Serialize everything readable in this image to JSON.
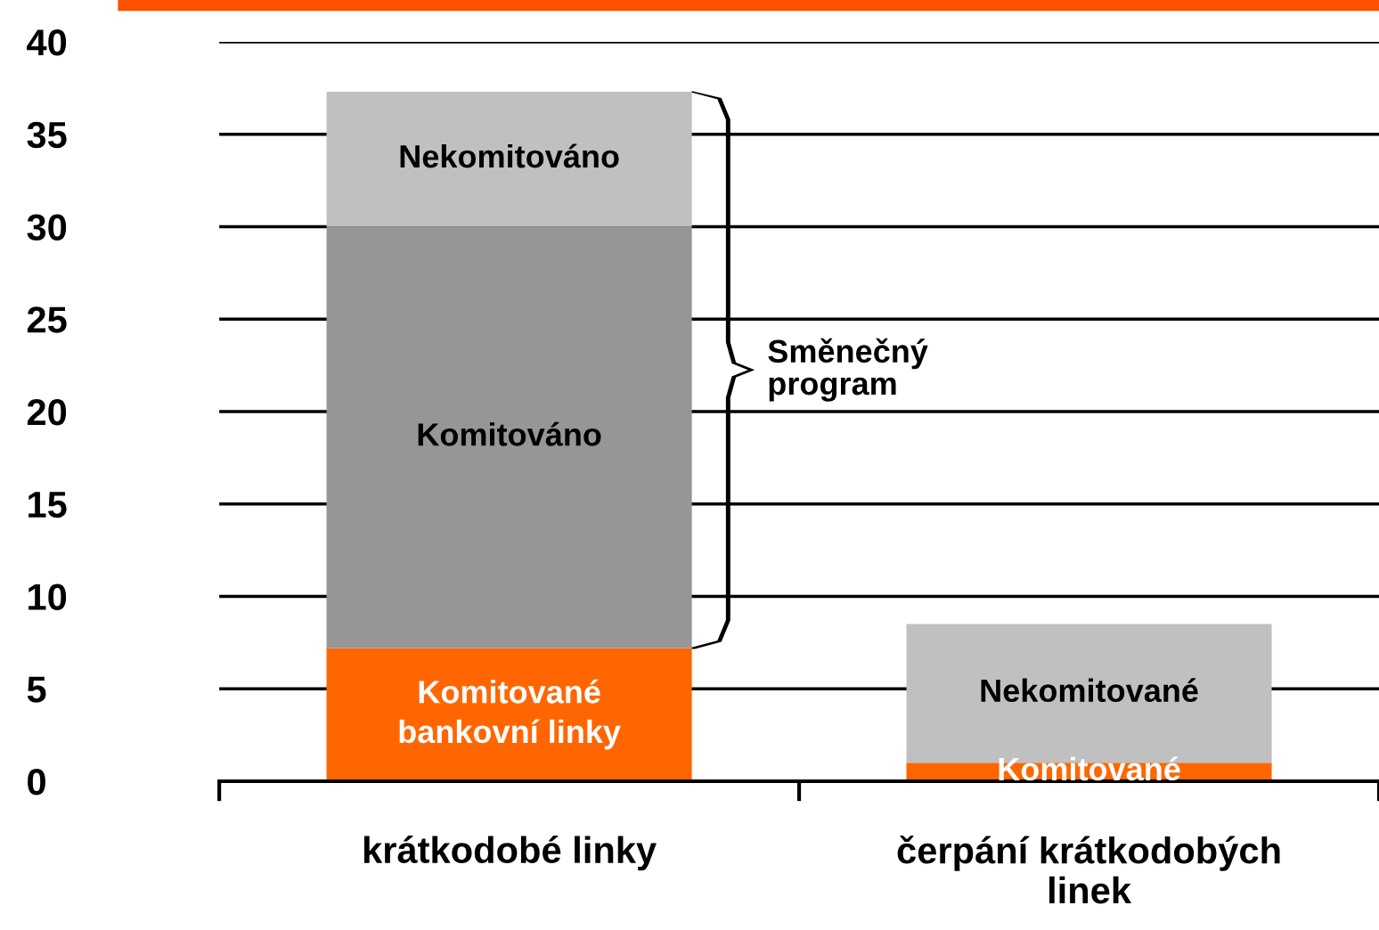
{
  "chart_data": {
    "type": "bar",
    "stacked": true,
    "categories": [
      "krátkodobé linky",
      "čerpání krátkodobých\nlinek"
    ],
    "series": [
      {
        "color": "#ff6600",
        "values": [
          7.2,
          1.0
        ]
      },
      {
        "color": "#969696",
        "values": [
          22.8,
          0
        ]
      },
      {
        "color": "#c0c0c0",
        "values": [
          7.3,
          7.5
        ]
      }
    ],
    "ylim": [
      0,
      40
    ],
    "yticks": [
      0,
      5,
      10,
      15,
      20,
      25,
      30,
      35,
      40
    ],
    "grid": "y",
    "legend": false,
    "annotations": [
      "Směnečný\nprogram",
      "Nekomitováno",
      "Komitováno",
      "Komitované\nbankovní linky",
      "Nekomitované",
      "Komitované"
    ]
  }
}
